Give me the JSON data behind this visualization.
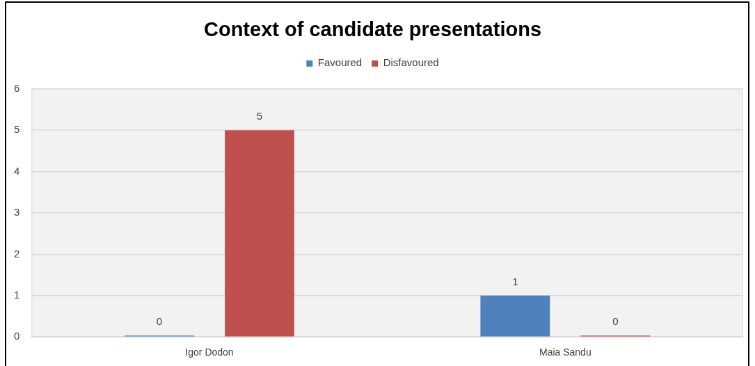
{
  "chart_data": {
    "type": "bar",
    "title": "Context of candidate presentations",
    "categories": [
      "Igor Dodon",
      "Maia Sandu"
    ],
    "series": [
      {
        "name": "Favoured",
        "color": "#4f81bd",
        "values": [
          0,
          1
        ]
      },
      {
        "name": "Disfavoured",
        "color": "#c0504d",
        "values": [
          5,
          0
        ]
      }
    ],
    "ylim": [
      0,
      6
    ],
    "yticks": [
      0,
      1,
      2,
      3,
      4,
      5,
      6
    ],
    "grid": "y",
    "legend": "top",
    "data_labels": true
  }
}
